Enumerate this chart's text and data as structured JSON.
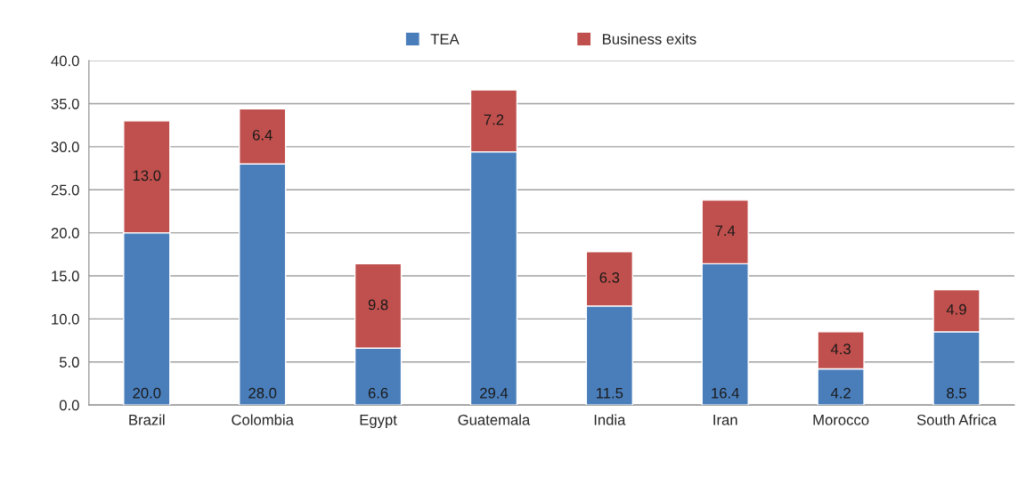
{
  "chart_data": {
    "type": "bar",
    "stacked": true,
    "categories": [
      "Brazil",
      "Colombia",
      "Egypt",
      "Guatemala",
      "India",
      "Iran",
      "Morocco",
      "South Africa"
    ],
    "series": [
      {
        "name": "TEA",
        "color": "#4a7ebb",
        "values": [
          20.0,
          28.0,
          6.6,
          29.4,
          11.5,
          16.4,
          4.2,
          8.5
        ],
        "value_labels": [
          "20.0",
          "28.0",
          "6.6",
          "29.4",
          "11.5",
          "16.4",
          "4.2",
          "8.5"
        ]
      },
      {
        "name": "Business exits",
        "color": "#c0504d",
        "values": [
          13.0,
          6.4,
          9.8,
          7.2,
          6.3,
          7.4,
          4.3,
          4.9
        ],
        "value_labels": [
          "13.0",
          "6.4",
          "9.8",
          "7.2",
          "6.3",
          "7.4",
          "4.3",
          "4.9"
        ]
      }
    ],
    "ylim": [
      0,
      40
    ],
    "yticks": [
      {
        "value": 0,
        "label": "0.0"
      },
      {
        "value": 5,
        "label": "5.0"
      },
      {
        "value": 10,
        "label": "10.0"
      },
      {
        "value": 15,
        "label": "15.0"
      },
      {
        "value": 20,
        "label": "20.0"
      },
      {
        "value": 25,
        "label": "25.0"
      },
      {
        "value": 30,
        "label": "30.0"
      },
      {
        "value": 35,
        "label": "35.0"
      },
      {
        "value": 40,
        "label": "40.0"
      }
    ],
    "grid": "y",
    "legend": "top"
  }
}
